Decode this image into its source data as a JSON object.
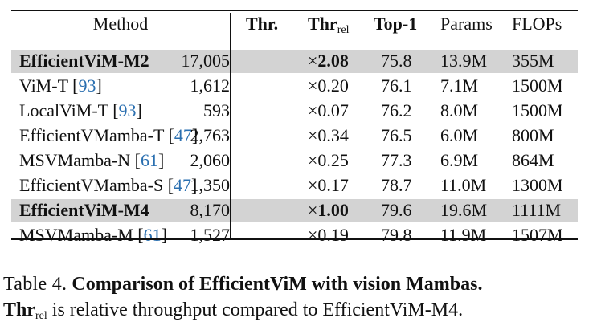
{
  "table": {
    "header": {
      "method": "Method",
      "thr": "Thr.",
      "thr_rel_main": "Thr",
      "thr_rel_sub": "rel",
      "top1": "Top-1",
      "params": "Params",
      "flops": "FLOPs"
    },
    "rows": [
      {
        "method": "EfficientViM-M2",
        "cite": "",
        "thr": "17,005",
        "rel": "2.08",
        "top1": "75.8",
        "params": "13.9M",
        "flops": "355M",
        "highlight": true
      },
      {
        "method": "ViM-T",
        "cite": "93",
        "thr": "1,612",
        "rel": "0.20",
        "top1": "76.1",
        "params": "7.1M",
        "flops": "1500M",
        "highlight": false
      },
      {
        "method": "LocalViM-T",
        "cite": "93",
        "thr": "593",
        "rel": "0.07",
        "top1": "76.2",
        "params": "8.0M",
        "flops": "1500M",
        "highlight": false
      },
      {
        "method": "EfficientVMamba-T",
        "cite": "47",
        "thr": "2,763",
        "rel": "0.34",
        "top1": "76.5",
        "params": "6.0M",
        "flops": "800M",
        "highlight": false
      },
      {
        "method": "MSVMamba-N",
        "cite": "61",
        "thr": "2,060",
        "rel": "0.25",
        "top1": "77.3",
        "params": "6.9M",
        "flops": "864M",
        "highlight": false
      },
      {
        "method": "EfficientVMamba-S",
        "cite": "47",
        "thr": "1,350",
        "rel": "0.17",
        "top1": "78.7",
        "params": "11.0M",
        "flops": "1300M",
        "highlight": false
      },
      {
        "method": "EfficientViM-M4",
        "cite": "",
        "thr": "8,170",
        "rel": "1.00",
        "top1": "79.6",
        "params": "19.6M",
        "flops": "1111M",
        "highlight": true
      },
      {
        "method": "MSVMamba-M",
        "cite": "61",
        "thr": "1,527",
        "rel": "0.19",
        "top1": "79.8",
        "params": "11.9M",
        "flops": "1507M",
        "highlight": false
      }
    ],
    "times_symbol": "×"
  },
  "caption": {
    "label": "Table 4.",
    "title": "Comparison of EfficientViM with vision Mambas.",
    "term_main": "Thr",
    "term_sub": "rel",
    "text": " is relative throughput compared to EfficientViM-M4."
  },
  "colors": {
    "highlight": "#d3d3d3",
    "citation": "#2a6fb0",
    "text": "#111111"
  }
}
